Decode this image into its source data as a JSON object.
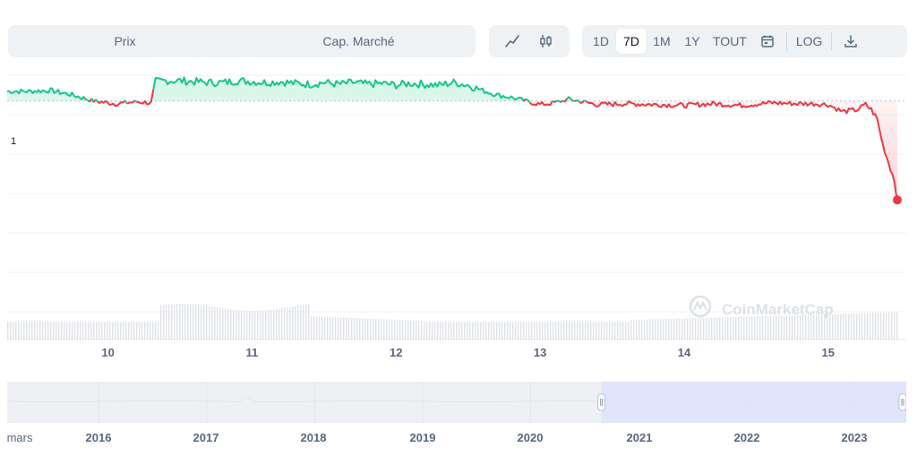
{
  "toolbar": {
    "metric_tabs": [
      {
        "label": "Prix"
      },
      {
        "label": "Cap. Marché"
      }
    ],
    "chart_styles": [
      {
        "icon": "line-chart-icon"
      },
      {
        "icon": "candlestick-icon"
      }
    ],
    "ranges": [
      {
        "label": "1D",
        "active": false
      },
      {
        "label": "7D",
        "active": true
      },
      {
        "label": "1M",
        "active": false
      },
      {
        "label": "1Y",
        "active": false
      },
      {
        "label": "TOUT",
        "active": false
      }
    ],
    "calendar_icon": "calendar-icon",
    "log_label": "LOG",
    "download_icon": "download-icon"
  },
  "colors": {
    "up": "#16c784",
    "down": "#ea3943",
    "accent": "#3861fb",
    "grid": "#eff2f5",
    "text": "#58667e"
  },
  "chart_data": {
    "type": "line",
    "x_unit": "day of month",
    "x_ticks": [
      10,
      11,
      12,
      13,
      14,
      15
    ],
    "x_range": [
      9.3,
      15.48
    ],
    "y_tick_labels": [
      "1"
    ],
    "y_range": [
      0.868,
      1.008
    ],
    "reference_line": 1,
    "series": [
      {
        "x": [
          9.3,
          9.45,
          9.6,
          9.75,
          9.9,
          10.05,
          10.2,
          10.3,
          10.33,
          10.4,
          10.5,
          10.6,
          10.7,
          10.8,
          10.9,
          11.0,
          11.1,
          11.2,
          11.3,
          11.4,
          11.5,
          11.6,
          11.7,
          11.8,
          11.9,
          12.0,
          12.1,
          12.2,
          12.3,
          12.4,
          12.5,
          12.6,
          12.7,
          12.8,
          12.9,
          13.0,
          13.1,
          13.2,
          13.4,
          13.6,
          13.8,
          14.0,
          14.2,
          14.4,
          14.6,
          14.8,
          14.9,
          15.0,
          15.1,
          15.2,
          15.26,
          15.3,
          15.34,
          15.38,
          15.42,
          15.46,
          15.48
        ],
        "y": [
          1.0055,
          1.0055,
          1.006,
          1.0035,
          1.0,
          0.9985,
          0.9995,
          0.999,
          1.011,
          1.0115,
          1.0115,
          1.011,
          1.0105,
          1.0105,
          1.0115,
          1.011,
          1.0105,
          1.011,
          1.01,
          1.0095,
          1.0105,
          1.0095,
          1.0105,
          1.0095,
          1.01,
          1.009,
          1.01,
          1.0095,
          1.009,
          1.0105,
          1.009,
          1.006,
          1.0035,
          1.002,
          1.0,
          0.998,
          0.999,
          1.001,
          0.998,
          0.9985,
          0.998,
          0.9975,
          0.9985,
          0.9975,
          0.999,
          0.9985,
          0.9985,
          0.998,
          0.994,
          0.995,
          0.998,
          0.995,
          0.99,
          0.975,
          0.965,
          0.955,
          0.944
        ]
      }
    ],
    "volume_label": "",
    "watermark": "CoinMarketCap"
  },
  "navigator": {
    "year_labels": [
      "mars",
      "2016",
      "2017",
      "2018",
      "2019",
      "2020",
      "2021",
      "2022",
      "2023"
    ],
    "selection_start_fraction": 0.661,
    "selection_end_fraction": 1.0
  }
}
